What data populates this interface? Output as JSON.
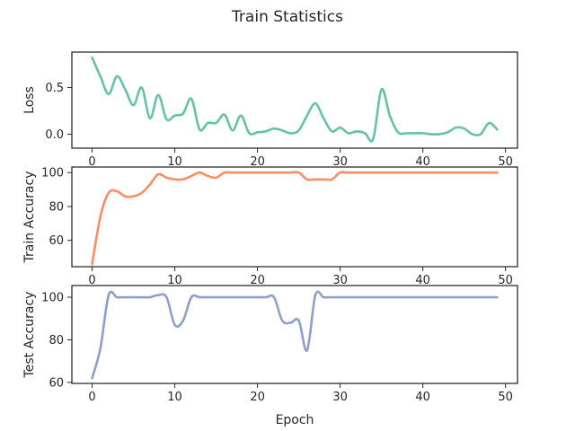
{
  "chart_data": {
    "type": "line",
    "title": "Train Statistics",
    "xlabel": "Epoch",
    "xlim": [
      -2.45,
      51.45
    ],
    "xticks": [
      0,
      10,
      20,
      30,
      40,
      50
    ],
    "grid": false,
    "legend": "none",
    "x": [
      0,
      1,
      2,
      3,
      4,
      5,
      6,
      7,
      8,
      9,
      10,
      11,
      12,
      13,
      14,
      15,
      16,
      17,
      18,
      19,
      20,
      21,
      22,
      23,
      24,
      25,
      26,
      27,
      28,
      29,
      30,
      31,
      32,
      33,
      34,
      35,
      36,
      37,
      38,
      39,
      40,
      41,
      42,
      43,
      44,
      45,
      46,
      47,
      48,
      49
    ],
    "panels": [
      {
        "ylabel": "Loss",
        "ylim": [
          -0.15,
          0.88
        ],
        "yticks": [
          0.0,
          0.5
        ],
        "tick_labels": [
          "0.0",
          "0.5"
        ],
        "color": "#66c2a5",
        "values": [
          0.82,
          0.62,
          0.43,
          0.62,
          0.48,
          0.31,
          0.5,
          0.17,
          0.42,
          0.16,
          0.2,
          0.22,
          0.38,
          0.05,
          0.12,
          0.12,
          0.21,
          0.04,
          0.2,
          0.01,
          0.02,
          0.03,
          0.06,
          0.04,
          0.01,
          0.04,
          0.2,
          0.33,
          0.17,
          0.03,
          0.07,
          0.01,
          0.03,
          0.01,
          -0.05,
          0.48,
          0.2,
          0.02,
          0.01,
          0.01,
          0.01,
          0.0,
          0.0,
          0.02,
          0.07,
          0.06,
          0.0,
          0.0,
          0.12,
          0.05
        ]
      },
      {
        "ylabel": "Train Accuracy",
        "ylim": [
          44.5,
          103.3
        ],
        "yticks": [
          60,
          80,
          100
        ],
        "tick_labels": [
          "60",
          "80",
          "100"
        ],
        "color": "#fc8d62",
        "values": [
          46,
          74,
          88,
          89,
          86,
          86,
          88,
          93,
          99,
          97,
          96,
          96,
          98,
          100,
          98,
          97,
          100,
          100,
          100,
          100,
          100,
          100,
          100,
          100,
          100,
          100,
          96,
          96,
          96,
          96,
          100,
          100,
          100,
          100,
          100,
          100,
          100,
          100,
          100,
          100,
          100,
          100,
          100,
          100,
          100,
          100,
          100,
          100,
          100,
          100
        ]
      },
      {
        "ylabel": "Test Accuracy",
        "ylim": [
          59.5,
          105.5
        ],
        "yticks": [
          60,
          80,
          100
        ],
        "tick_labels": [
          "60",
          "80",
          "100"
        ],
        "color": "#8da0cb",
        "values": [
          62,
          76,
          101,
          100,
          100,
          100,
          100,
          100,
          101,
          100,
          87,
          89,
          100,
          100,
          100,
          100,
          100,
          100,
          100,
          100,
          100,
          100,
          100,
          89,
          88,
          89,
          75,
          101,
          100,
          100,
          100,
          100,
          100,
          100,
          100,
          100,
          100,
          100,
          100,
          100,
          100,
          100,
          100,
          100,
          100,
          100,
          100,
          100,
          100,
          100
        ]
      }
    ]
  }
}
